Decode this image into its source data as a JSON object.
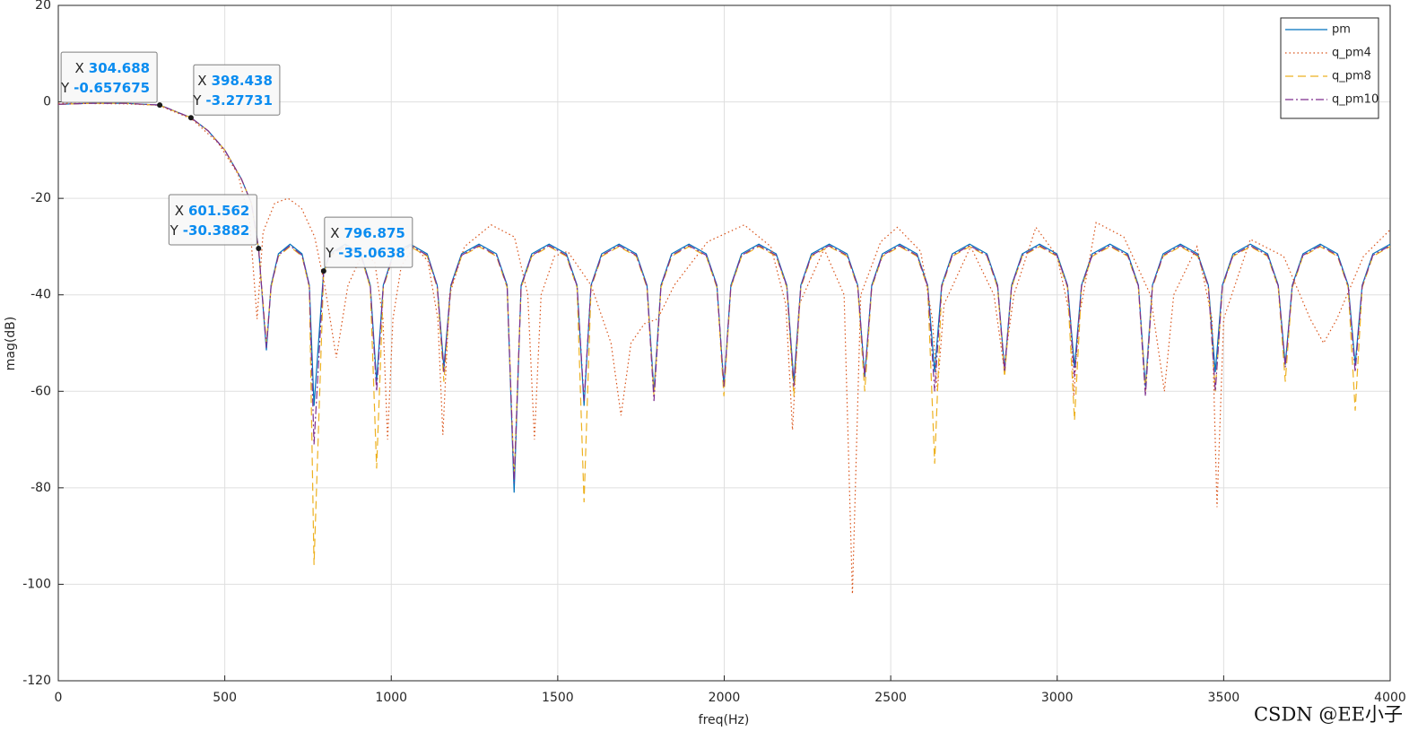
{
  "chart_data": {
    "type": "line",
    "xlabel": "freq(Hz)",
    "ylabel": "mag(dB)",
    "xlim": [
      0,
      4000
    ],
    "ylim": [
      -120,
      20
    ],
    "xticks": [
      0,
      500,
      1000,
      1500,
      2000,
      2500,
      3000,
      3500,
      4000
    ],
    "yticks": [
      -120,
      -100,
      -80,
      -60,
      -40,
      -20,
      0,
      20
    ],
    "grid": true,
    "legend_position": "northeast",
    "series": [
      {
        "name": "pm",
        "color": "#0072bd",
        "line_style": "solid",
        "x": [
          0,
          100,
          200,
          304.688,
          398.438,
          450,
          500,
          550,
          580,
          601.562,
          625,
          639,
          661,
          696,
          732,
          754,
          768,
          796.875,
          815,
          862,
          909,
          937,
          956,
          976,
          1006,
          1057,
          1108,
          1138,
          1158,
          1179,
          1211,
          1263.5,
          1316,
          1348,
          1369,
          1390,
          1422,
          1474,
          1526,
          1558,
          1579,
          1600,
          1632,
          1684,
          1736,
          1768,
          1789,
          1810,
          1842,
          1894,
          1946,
          1978,
          1999,
          2020,
          2052,
          2104,
          2156,
          2188,
          2209,
          2230,
          2262,
          2315.5,
          2369,
          2401,
          2422,
          2443,
          2475,
          2527,
          2579,
          2611,
          2632,
          2653,
          2685,
          2737,
          2789,
          2821,
          2842,
          2863,
          2895,
          2947,
          2999,
          3031,
          3052,
          3073,
          3105,
          3158.5,
          3212,
          3244,
          3265,
          3286,
          3318,
          3370,
          3422,
          3454,
          3475,
          3496,
          3528,
          3580,
          3632,
          3664,
          3685,
          3706,
          3738,
          3790,
          3842,
          3874,
          3895,
          3916,
          3948,
          4000
        ],
        "values": [
          -0.5,
          -0.3,
          -0.3,
          -0.657675,
          -3.27731,
          -6,
          -10,
          -16,
          -21,
          -30.3882,
          -51.5,
          -38,
          -31.5,
          -29.5,
          -31.5,
          -38,
          -63,
          -35.0638,
          -31.5,
          -29.5,
          -31.5,
          -38,
          -58,
          -38,
          -31.5,
          -29.5,
          -31.5,
          -38,
          -55,
          -38,
          -31.5,
          -29.5,
          -31.5,
          -38,
          -81,
          -38,
          -31.5,
          -29.5,
          -31.5,
          -38,
          -63,
          -38,
          -31.5,
          -29.5,
          -31.5,
          -38,
          -60,
          -38,
          -31.5,
          -29.5,
          -31.5,
          -38,
          -59,
          -38,
          -31.5,
          -29.5,
          -31.5,
          -38,
          -58,
          -38,
          -31.5,
          -29.5,
          -31.5,
          -38,
          -57,
          -38,
          -31.5,
          -29.5,
          -31.5,
          -38,
          -56,
          -38,
          -31.5,
          -29.5,
          -31.5,
          -38,
          -55.5,
          -38,
          -31.5,
          -29.5,
          -31.5,
          -38,
          -55,
          -38,
          -31.5,
          -29.5,
          -31.5,
          -38,
          -59,
          -38,
          -31.5,
          -29.5,
          -31.5,
          -38,
          -56,
          -38,
          -31.5,
          -29.5,
          -31.5,
          -38,
          -54.5,
          -38,
          -31.5,
          -29.5,
          -31.5,
          -38,
          -54.5,
          -38,
          -31.5,
          -29.5
        ]
      },
      {
        "name": "q_pm4",
        "color": "#d95319",
        "line_style": "dotted",
        "x": [
          0,
          200,
          300,
          400,
          480,
          540,
          575,
          597,
          615,
          650,
          690,
          730,
          770,
          800,
          835,
          870,
          910,
          950,
          975,
          989,
          1005,
          1030,
          1070,
          1110,
          1140,
          1155,
          1175,
          1220,
          1300,
          1370,
          1410,
          1430,
          1450,
          1490,
          1530,
          1600,
          1660,
          1690,
          1720,
          1760,
          1800,
          1850,
          1950,
          2060,
          2140,
          2185,
          2205,
          2225,
          2300,
          2360,
          2385,
          2410,
          2470,
          2520,
          2590,
          2625,
          2640,
          2660,
          2740,
          2810,
          2840,
          2870,
          2936,
          3000,
          3040,
          3050,
          3065,
          3117,
          3200,
          3280,
          3322,
          3350,
          3420,
          3465,
          3480,
          3500,
          3580,
          3680,
          3760,
          3800,
          3840,
          3920,
          4000
        ],
        "values": [
          -0.3,
          -0.4,
          -0.7,
          -3.5,
          -8.5,
          -15,
          -25,
          -45,
          -27,
          -21,
          -20,
          -22,
          -28,
          -38,
          -53,
          -38,
          -32,
          -33,
          -45,
          -70,
          -45,
          -34,
          -30,
          -33,
          -45,
          -69,
          -40,
          -30,
          -25.5,
          -28,
          -40,
          -70,
          -40,
          -32,
          -31,
          -38,
          -50,
          -65,
          -50,
          -46,
          -45,
          -38,
          -29,
          -25.5,
          -30,
          -42,
          -68,
          -42,
          -30.5,
          -40,
          -102,
          -40,
          -29,
          -26,
          -31,
          -45,
          -60,
          -42,
          -30,
          -40,
          -55,
          -40,
          -26,
          -32,
          -45,
          -61,
          -45,
          -25,
          -28,
          -40,
          -60,
          -40,
          -30,
          -45,
          -84,
          -45,
          -28.5,
          -32,
          -45,
          -50,
          -45,
          -32,
          -26.5
        ]
      },
      {
        "name": "q_pm8",
        "color": "#edb120",
        "line_style": "dashed",
        "x": [
          0,
          100,
          200,
          304.688,
          398.438,
          450,
          500,
          550,
          580,
          601.562,
          625,
          639,
          661,
          696,
          732,
          754,
          768,
          796.875,
          815,
          862,
          909,
          937,
          956,
          976,
          1006,
          1057,
          1108,
          1138,
          1158,
          1179,
          1211,
          1263.5,
          1316,
          1348,
          1369,
          1390,
          1422,
          1474,
          1526,
          1558,
          1579,
          1600,
          1632,
          1684,
          1736,
          1768,
          1789,
          1810,
          1842,
          1894,
          1946,
          1978,
          1999,
          2020,
          2052,
          2104,
          2156,
          2188,
          2209,
          2230,
          2262,
          2315.5,
          2369,
          2401,
          2422,
          2443,
          2475,
          2527,
          2579,
          2611,
          2632,
          2653,
          2685,
          2737,
          2789,
          2821,
          2842,
          2863,
          2895,
          2947,
          2999,
          3031,
          3052,
          3073,
          3105,
          3158.5,
          3212,
          3244,
          3265,
          3286,
          3318,
          3370,
          3422,
          3454,
          3475,
          3496,
          3528,
          3580,
          3632,
          3664,
          3685,
          3706,
          3738,
          3790,
          3842,
          3874,
          3895,
          3916,
          3948,
          4000
        ],
        "values": [
          -0.5,
          -0.3,
          -0.3,
          -0.7,
          -3.3,
          -6,
          -10,
          -16,
          -21,
          -30.5,
          -50,
          -38.5,
          -32,
          -30,
          -32,
          -38.5,
          -96,
          -35.5,
          -32,
          -30,
          -32,
          -38.5,
          -76,
          -38.5,
          -32,
          -30,
          -32,
          -38.5,
          -58,
          -38.5,
          -32,
          -30,
          -32,
          -38.5,
          -78,
          -38.5,
          -32,
          -30,
          -32,
          -38.5,
          -83,
          -38.5,
          -32,
          -30,
          -32,
          -38.5,
          -61,
          -38.5,
          -32,
          -30,
          -32,
          -38.5,
          -61,
          -38.5,
          -32,
          -30,
          -32,
          -38.5,
          -61,
          -38.5,
          -32,
          -30,
          -32,
          -38.5,
          -60,
          -38.5,
          -32,
          -30,
          -32,
          -38.5,
          -75,
          -38.5,
          -32,
          -30,
          -32,
          -38.5,
          -57,
          -38.5,
          -32,
          -30,
          -32,
          -38.5,
          -66,
          -38.5,
          -32,
          -30,
          -32,
          -38.5,
          -60,
          -38.5,
          -32,
          -30,
          -32,
          -38.5,
          -60,
          -38.5,
          -32,
          -30,
          -32,
          -38.5,
          -58,
          -38.5,
          -32,
          -30,
          -32,
          -38.5,
          -64,
          -38.5,
          -32,
          -30
        ]
      },
      {
        "name": "q_pm10",
        "color": "#7e2f8e",
        "line_style": "dashdot",
        "x": [
          0,
          100,
          200,
          304.688,
          398.438,
          450,
          500,
          550,
          580,
          601.562,
          625,
          639,
          661,
          696,
          732,
          754,
          768,
          796.875,
          815,
          862,
          909,
          937,
          956,
          976,
          1006,
          1057,
          1108,
          1138,
          1158,
          1179,
          1211,
          1263.5,
          1316,
          1348,
          1369,
          1390,
          1422,
          1474,
          1526,
          1558,
          1579,
          1600,
          1632,
          1684,
          1736,
          1768,
          1789,
          1810,
          1842,
          1894,
          1946,
          1978,
          1999,
          2020,
          2052,
          2104,
          2156,
          2188,
          2209,
          2230,
          2262,
          2315.5,
          2369,
          2401,
          2422,
          2443,
          2475,
          2527,
          2579,
          2611,
          2632,
          2653,
          2685,
          2737,
          2789,
          2821,
          2842,
          2863,
          2895,
          2947,
          2999,
          3031,
          3052,
          3073,
          3105,
          3158.5,
          3212,
          3244,
          3265,
          3286,
          3318,
          3370,
          3422,
          3454,
          3475,
          3496,
          3528,
          3580,
          3632,
          3664,
          3685,
          3706,
          3738,
          3790,
          3842,
          3874,
          3895,
          3916,
          3948,
          4000
        ],
        "values": [
          -0.5,
          -0.3,
          -0.3,
          -0.66,
          -3.28,
          -6,
          -10,
          -16,
          -21,
          -30.4,
          -51,
          -38.2,
          -31.8,
          -29.8,
          -31.8,
          -38.2,
          -71,
          -35.3,
          -31.8,
          -29.8,
          -31.8,
          -38.2,
          -60,
          -38.2,
          -31.8,
          -29.8,
          -31.8,
          -38.2,
          -56,
          -38.2,
          -31.8,
          -29.8,
          -31.8,
          -38.2,
          -79,
          -38.2,
          -31.8,
          -29.8,
          -31.8,
          -38.2,
          -62,
          -38.2,
          -31.8,
          -29.8,
          -31.8,
          -38.2,
          -62,
          -38.2,
          -31.8,
          -29.8,
          -31.8,
          -38.2,
          -59,
          -38.2,
          -31.8,
          -29.8,
          -31.8,
          -38.2,
          -59,
          -38.2,
          -31.8,
          -29.8,
          -31.8,
          -38.2,
          -57,
          -38.2,
          -31.8,
          -29.8,
          -31.8,
          -38.2,
          -60,
          -38.2,
          -31.8,
          -29.8,
          -31.8,
          -38.2,
          -56,
          -38.2,
          -31.8,
          -29.8,
          -31.8,
          -38.2,
          -57,
          -38.2,
          -31.8,
          -29.8,
          -31.8,
          -38.2,
          -61,
          -38.2,
          -31.8,
          -29.8,
          -31.8,
          -38.2,
          -60,
          -38.2,
          -31.8,
          -29.8,
          -31.8,
          -38.2,
          -55,
          -38.2,
          -31.8,
          -29.8,
          -31.8,
          -38.2,
          -56,
          -38.2,
          -31.8,
          -29.8
        ]
      }
    ],
    "datatip_x_label": "X",
    "datatip_y_label": "Y",
    "datatips": [
      {
        "x": 304.688,
        "y": -0.657675
      },
      {
        "x": 398.438,
        "y": -3.27731
      },
      {
        "x": 601.562,
        "y": -30.3882
      },
      {
        "x": 796.875,
        "y": -35.0638
      }
    ],
    "watermark": "CSDN @EE小子"
  }
}
